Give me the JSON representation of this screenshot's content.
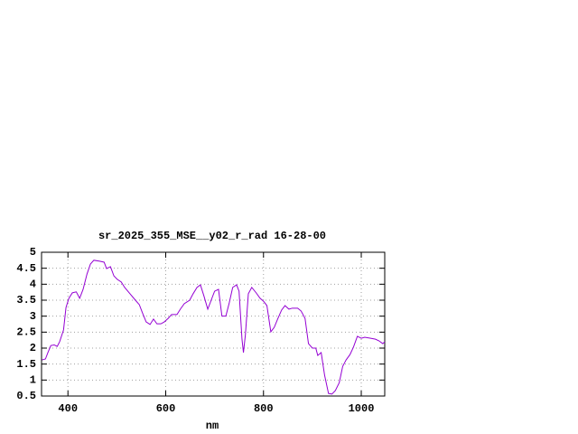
{
  "chart_data": {
    "type": "line",
    "title": "sr_2025_355_MSE__y02_r_rad 16-28-00",
    "x_label": "nm",
    "x": [
      347,
      354,
      359,
      365,
      372,
      378,
      383,
      391,
      396,
      402,
      409,
      417,
      424,
      431,
      439,
      446,
      453,
      465,
      474,
      479,
      487,
      494,
      501,
      509,
      516,
      527,
      538,
      546,
      553,
      560,
      568,
      575,
      582,
      590,
      597,
      605,
      612,
      623,
      630,
      638,
      649,
      656,
      664,
      671,
      678,
      686,
      693,
      700,
      708,
      715,
      723,
      730,
      737,
      745,
      750,
      756,
      759,
      763,
      769,
      776,
      785,
      793,
      800,
      807,
      815,
      822,
      829,
      837,
      844,
      852,
      859,
      870,
      877,
      885,
      892,
      900,
      907,
      911,
      918,
      925,
      933,
      940,
      947,
      955,
      962,
      969,
      977,
      984,
      992,
      1000,
      1007,
      1018,
      1029,
      1036,
      1044,
      1048
    ],
    "series": [
      {
        "name": "sr_2025_355_MSE__y02_r_rad",
        "color": "#9400d3",
        "values": [
          1.63,
          1.66,
          1.86,
          2.08,
          2.1,
          2.05,
          2.2,
          2.57,
          3.27,
          3.56,
          3.73,
          3.76,
          3.56,
          3.84,
          4.32,
          4.63,
          4.75,
          4.72,
          4.69,
          4.49,
          4.55,
          4.26,
          4.15,
          4.07,
          3.9,
          3.7,
          3.5,
          3.36,
          3.08,
          2.82,
          2.74,
          2.91,
          2.76,
          2.76,
          2.82,
          2.93,
          3.05,
          3.05,
          3.22,
          3.39,
          3.5,
          3.7,
          3.9,
          3.98,
          3.64,
          3.22,
          3.5,
          3.78,
          3.84,
          3.0,
          3.0,
          3.42,
          3.9,
          3.98,
          3.78,
          2.28,
          1.86,
          2.42,
          3.7,
          3.9,
          3.73,
          3.56,
          3.47,
          3.33,
          2.51,
          2.65,
          2.91,
          3.19,
          3.33,
          3.22,
          3.25,
          3.25,
          3.16,
          2.93,
          2.14,
          2.0,
          2.0,
          1.77,
          1.86,
          1.15,
          0.58,
          0.56,
          0.67,
          0.92,
          1.43,
          1.63,
          1.8,
          2.03,
          2.37,
          2.31,
          2.34,
          2.31,
          2.28,
          2.23,
          2.14,
          2.2
        ]
      }
    ],
    "xlim": [
      346,
      1048
    ],
    "ylim": [
      0.5,
      5
    ],
    "xticks": [
      400,
      600,
      800,
      1000
    ],
    "yticks": [
      0.5,
      1,
      1.5,
      2,
      2.5,
      3,
      3.5,
      4,
      4.5,
      5
    ],
    "grid": true
  }
}
